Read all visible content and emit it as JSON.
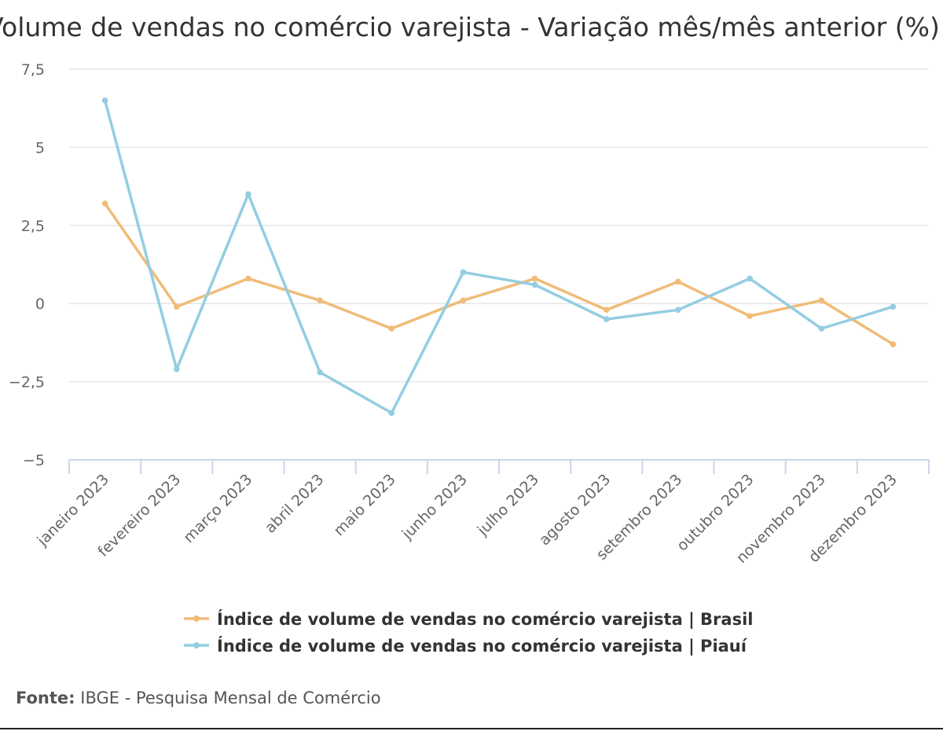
{
  "source": {
    "label": "Fonte:",
    "text": "IBGE - Pesquisa Mensal de Comércio"
  },
  "chart_data": {
    "type": "line",
    "title": "Volume de vendas no comércio varejista - Variação mês/mês anterior (%)",
    "categories": [
      "janeiro 2023",
      "fevereiro 2023",
      "março 2023",
      "abril 2023",
      "maio 2023",
      "junho 2023",
      "julho 2023",
      "agosto 2023",
      "setembro 2023",
      "outubro 2023",
      "novembro 2023",
      "dezembro 2023"
    ],
    "series": [
      {
        "name": "Índice de volume de vendas no comércio varejista | Brasil",
        "color": "#f0bc78",
        "values": [
          3.2,
          -0.1,
          0.8,
          0.1,
          -0.8,
          0.1,
          0.8,
          -0.2,
          0.7,
          -0.4,
          0.1,
          -1.3
        ]
      },
      {
        "name": "Índice de volume de vendas no comércio varejista | Piauí",
        "color": "#94cde2",
        "values": [
          6.5,
          -2.1,
          3.5,
          -2.2,
          -3.5,
          1.0,
          0.6,
          -0.5,
          -0.2,
          0.8,
          -0.8,
          -0.1
        ]
      }
    ],
    "yticks": [
      "7,5",
      "5",
      "2,5",
      "0",
      "−2,5",
      "−5"
    ],
    "ytick_values": [
      7.5,
      5,
      2.5,
      0,
      -2.5,
      -5
    ],
    "ylim": [
      -5,
      7.5
    ],
    "xlabel": "",
    "ylabel": "",
    "grid": true,
    "legend_position": "bottom"
  }
}
